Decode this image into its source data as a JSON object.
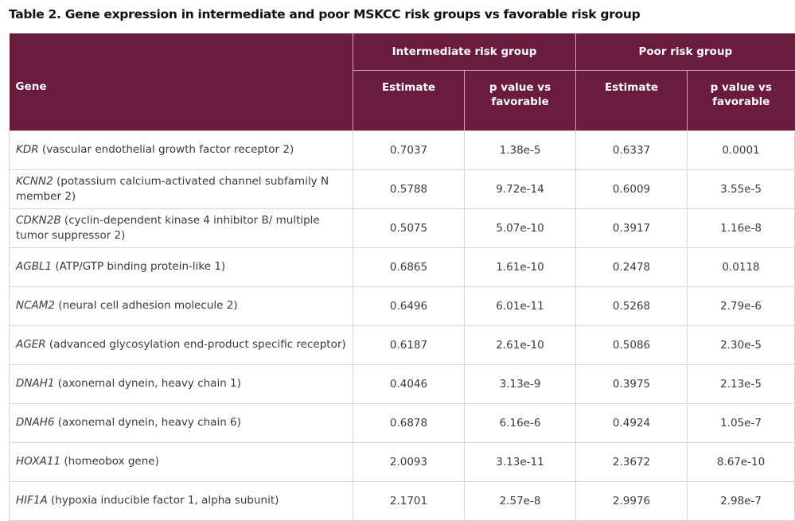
{
  "title": "Table 2. Gene expression in intermediate and poor MSKCC risk groups vs favorable risk group",
  "table": {
    "group_headers": [
      "Intermediate risk group",
      "Poor risk group"
    ],
    "columns": [
      "Gene",
      "Estimate",
      "p value vs favorable",
      "Estimate",
      "p value vs favorable"
    ],
    "rows": [
      {
        "gene": "KDR",
        "description": "(vascular endothelial growth factor receptor 2)",
        "values": [
          "0.7037",
          "1.38e-5",
          "0.6337",
          "0.0001"
        ]
      },
      {
        "gene": "KCNN2",
        "description": "(potassium calcium-activated channel subfamily N member 2)",
        "values": [
          "0.5788",
          "9.72e-14",
          "0.6009",
          "3.55e-5"
        ]
      },
      {
        "gene": "CDKN2B",
        "description": "(cyclin-dependent kinase 4 inhibitor B/ multiple tumor suppressor 2)",
        "values": [
          "0.5075",
          "5.07e-10",
          "0.3917",
          "1.16e-8"
        ]
      },
      {
        "gene": "AGBL1",
        "description": "(ATP/GTP binding protein-like 1)",
        "values": [
          "0.6865",
          "1.61e-10",
          "0.2478",
          "0.0118"
        ]
      },
      {
        "gene": "NCAM2",
        "description": "(neural cell adhesion molecule 2)",
        "values": [
          "0.6496",
          "6.01e-11",
          "0.5268",
          "2.79e-6"
        ]
      },
      {
        "gene": "AGER",
        "description": "(advanced glycosylation end-product specific receptor)",
        "values": [
          "0.6187",
          "2.61e-10",
          "0.5086",
          "2.30e-5"
        ]
      },
      {
        "gene": "DNAH1",
        "description": "(axonemal dynein, heavy chain 1)",
        "values": [
          "0.4046",
          "3.13e-9",
          "0.3975",
          "2.13e-5"
        ]
      },
      {
        "gene": "DNAH6",
        "description": "(axonemal dynein, heavy chain 6)",
        "values": [
          "0.6878",
          "6.16e-6",
          "0.4924",
          "1.05e-7"
        ]
      },
      {
        "gene": "HOXA11",
        "description": "(homeobox gene)",
        "values": [
          "2.0093",
          "3.13e-11",
          "2.3672",
          "8.67e-10"
        ]
      },
      {
        "gene": "HIF1A",
        "description": "(hypoxia inducible factor 1, alpha subunit)",
        "values": [
          "2.1701",
          "2.57e-8",
          "2.9976",
          "2.98e-7"
        ]
      }
    ]
  }
}
